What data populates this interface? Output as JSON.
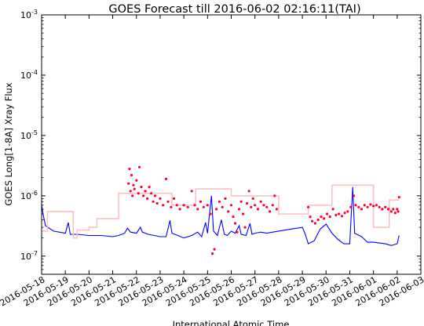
{
  "chart_data": {
    "type": "line",
    "title": "GOES Forecast till 2016-06-02 02:16:11(TAI)",
    "xlabel": "International Atomic Time",
    "ylabel": "GOES Long[1-8A] Xray Flux",
    "yscale": "log",
    "ylim": [
      5e-08,
      0.001
    ],
    "xlim": [
      "2016-05-18",
      "2016-06-03"
    ],
    "x_ticks": [
      "2016-05-18",
      "2016-05-19",
      "2016-05-20",
      "2016-05-21",
      "2016-05-22",
      "2016-05-23",
      "2016-05-24",
      "2016-05-25",
      "2016-05-26",
      "2016-05-27",
      "2016-05-28",
      "2016-05-29",
      "2016-05-30",
      "2016-05-31",
      "2016-06-01",
      "2016-06-02",
      "2016-06-03"
    ],
    "y_ticks": [
      {
        "value": 1e-07,
        "base": "10",
        "exp": "-7"
      },
      {
        "value": 1e-06,
        "base": "10",
        "exp": "-6"
      },
      {
        "value": 1e-05,
        "base": "10",
        "exp": "-5"
      },
      {
        "value": 0.0001,
        "base": "10",
        "exp": "-4"
      },
      {
        "value": 0.001,
        "base": "10",
        "exp": "-3"
      }
    ],
    "grid": "none",
    "series": [
      {
        "color": "#0000ff",
        "style": "line",
        "points": [
          [
            "2016-05-18 00:00",
            7e-07
          ],
          [
            "2016-05-18 02:00",
            4.5e-07
          ],
          [
            "2016-05-18 04:00",
            3.2e-07
          ],
          [
            "2016-05-18 12:00",
            2.6e-07
          ],
          [
            "2016-05-19 00:00",
            2.4e-07
          ],
          [
            "2016-05-19 03:00",
            3.6e-07
          ],
          [
            "2016-05-19 05:00",
            2.3e-07
          ],
          [
            "2016-05-19 12:00",
            2.3e-07
          ],
          [
            "2016-05-20 00:00",
            2.2e-07
          ],
          [
            "2016-05-20 12:00",
            2.2e-07
          ],
          [
            "2016-05-21 00:00",
            2.1e-07
          ],
          [
            "2016-05-21 06:00",
            2.2e-07
          ],
          [
            "2016-05-21 12:00",
            2.4e-07
          ],
          [
            "2016-05-21 15:00",
            2.9e-07
          ],
          [
            "2016-05-21 18:00",
            2.5e-07
          ],
          [
            "2016-05-22 00:00",
            2.4e-07
          ],
          [
            "2016-05-22 04:00",
            3e-07
          ],
          [
            "2016-05-22 06:00",
            2.5e-07
          ],
          [
            "2016-05-22 12:00",
            2.3e-07
          ],
          [
            "2016-05-22 18:00",
            2.2e-07
          ],
          [
            "2016-05-23 00:00",
            2.1e-07
          ],
          [
            "2016-05-23 06:00",
            2.1e-07
          ],
          [
            "2016-05-23 10:00",
            3.9e-07
          ],
          [
            "2016-05-23 12:00",
            2.4e-07
          ],
          [
            "2016-05-23 18:00",
            2.2e-07
          ],
          [
            "2016-05-24 00:00",
            2e-07
          ],
          [
            "2016-05-24 08:00",
            2.2e-07
          ],
          [
            "2016-05-24 14:00",
            2.5e-07
          ],
          [
            "2016-05-24 18:00",
            2.1e-07
          ],
          [
            "2016-05-24 22:00",
            3.6e-07
          ],
          [
            "2016-05-25 00:00",
            2.4e-07
          ],
          [
            "2016-05-25 04:00",
            1e-06
          ],
          [
            "2016-05-25 06:00",
            2.6e-07
          ],
          [
            "2016-05-25 10:00",
            2.2e-07
          ],
          [
            "2016-05-25 14:00",
            4e-07
          ],
          [
            "2016-05-25 17:00",
            2.3e-07
          ],
          [
            "2016-05-25 20:00",
            2.2e-07
          ],
          [
            "2016-05-26 00:00",
            2.6e-07
          ],
          [
            "2016-05-26 04:00",
            2.4e-07
          ],
          [
            "2016-05-26 08:00",
            3.2e-07
          ],
          [
            "2016-05-26 10:00",
            2.3e-07
          ],
          [
            "2016-05-26 15:00",
            2.2e-07
          ],
          [
            "2016-05-26 19:00",
            3.5e-07
          ],
          [
            "2016-05-26 21:00",
            2.3e-07
          ],
          [
            "2016-05-27 00:00",
            2.4e-07
          ],
          [
            "2016-05-27 06:00",
            2.5e-07
          ],
          [
            "2016-05-27 12:00",
            2.4e-07
          ],
          [
            "2016-05-27 18:00",
            2.5e-07
          ],
          [
            "2016-05-28 00:00",
            2.6e-07
          ],
          [
            "2016-05-28 12:00",
            2.8e-07
          ],
          [
            "2016-05-29 00:00",
            3e-07
          ],
          [
            "2016-05-29 03:00",
            2.3e-07
          ],
          [
            "2016-05-29 06:00",
            1.6e-07
          ],
          [
            "2016-05-29 12:00",
            1.8e-07
          ],
          [
            "2016-05-29 18:00",
            2.8e-07
          ],
          [
            "2016-05-30 00:00",
            3.4e-07
          ],
          [
            "2016-05-30 06:00",
            2.4e-07
          ],
          [
            "2016-05-30 12:00",
            1.9e-07
          ],
          [
            "2016-05-30 18:00",
            1.6e-07
          ],
          [
            "2016-05-31 00:00",
            1.6e-07
          ],
          [
            "2016-05-31 03:00",
            1.4e-06
          ],
          [
            "2016-05-31 05:00",
            2.4e-07
          ],
          [
            "2016-05-31 12:00",
            2.1e-07
          ],
          [
            "2016-05-31 18:00",
            1.7e-07
          ],
          [
            "2016-06-01 00:00",
            1.7e-07
          ],
          [
            "2016-06-01 12:00",
            1.6e-07
          ],
          [
            "2016-06-01 18:00",
            1.5e-07
          ],
          [
            "2016-06-02 00:00",
            1.6e-07
          ],
          [
            "2016-06-02 02:00",
            2.2e-07
          ]
        ]
      },
      {
        "color": "#ffc0c0",
        "style": "step",
        "points": [
          [
            "2016-05-18 00:00",
            2.6e-07
          ],
          [
            "2016-05-18 06:00",
            5.5e-07
          ],
          [
            "2016-05-19 00:00",
            5.5e-07
          ],
          [
            "2016-05-19 08:00",
            2e-07
          ],
          [
            "2016-05-19 12:00",
            2.7e-07
          ],
          [
            "2016-05-20 00:00",
            3e-07
          ],
          [
            "2016-05-20 08:00",
            4.2e-07
          ],
          [
            "2016-05-21 00:00",
            4.2e-07
          ],
          [
            "2016-05-21 06:00",
            1.1e-06
          ],
          [
            "2016-05-22 00:00",
            1.1e-06
          ],
          [
            "2016-05-22 18:00",
            1.1e-06
          ],
          [
            "2016-05-23 00:00",
            1.1e-06
          ],
          [
            "2016-05-23 12:00",
            7e-07
          ],
          [
            "2016-05-24 00:00",
            7e-07
          ],
          [
            "2016-05-24 12:00",
            1.3e-06
          ],
          [
            "2016-05-25 00:00",
            1.3e-06
          ],
          [
            "2016-05-25 12:00",
            1.3e-06
          ],
          [
            "2016-05-26 00:00",
            1e-06
          ],
          [
            "2016-05-27 00:00",
            1e-06
          ],
          [
            "2016-05-27 12:00",
            1e-06
          ],
          [
            "2016-05-28 00:00",
            5e-07
          ],
          [
            "2016-05-29 00:00",
            5e-07
          ],
          [
            "2016-05-29 06:00",
            7e-07
          ],
          [
            "2016-05-30 00:00",
            7e-07
          ],
          [
            "2016-05-30 06:00",
            1.5e-06
          ],
          [
            "2016-05-31 00:00",
            1.5e-06
          ],
          [
            "2016-05-31 12:00",
            1.5e-06
          ],
          [
            "2016-06-01 00:00",
            3e-07
          ],
          [
            "2016-06-01 12:00",
            3e-07
          ],
          [
            "2016-06-01 16:00",
            8.5e-07
          ],
          [
            "2016-06-02 00:00",
            8.5e-07
          ],
          [
            "2016-06-02 02:00",
            8.5e-07
          ]
        ]
      },
      {
        "color": "#ff0033",
        "style": "scatter",
        "points": [
          [
            "2016-05-21 16:00",
            1.6e-06
          ],
          [
            "2016-05-21 17:00",
            2.8e-06
          ],
          [
            "2016-05-21 18:00",
            1.2e-06
          ],
          [
            "2016-05-21 19:00",
            2.2e-06
          ],
          [
            "2016-05-21 20:00",
            1e-06
          ],
          [
            "2016-05-21 21:00",
            1.5e-06
          ],
          [
            "2016-05-21 22:00",
            1.3e-06
          ],
          [
            "2016-05-22 00:00",
            1.8e-06
          ],
          [
            "2016-05-22 02:00",
            1.1e-06
          ],
          [
            "2016-05-22 03:00",
            3e-06
          ],
          [
            "2016-05-22 05:00",
            1.4e-06
          ],
          [
            "2016-05-22 07:00",
            1e-06
          ],
          [
            "2016-05-22 09:00",
            1.2e-06
          ],
          [
            "2016-05-22 11:00",
            9e-07
          ],
          [
            "2016-05-22 13:00",
            1.4e-06
          ],
          [
            "2016-05-22 15:00",
            1.1e-06
          ],
          [
            "2016-05-22 17:00",
            8e-07
          ],
          [
            "2016-05-22 19:00",
            1e-06
          ],
          [
            "2016-05-22 21:00",
            7.5e-07
          ],
          [
            "2016-05-23 00:00",
            9e-07
          ],
          [
            "2016-05-23 03:00",
            7e-07
          ],
          [
            "2016-05-23 06:00",
            1.9e-06
          ],
          [
            "2016-05-23 08:00",
            8e-07
          ],
          [
            "2016-05-23 11:00",
            6.5e-07
          ],
          [
            "2016-05-23 14:00",
            9e-07
          ],
          [
            "2016-05-23 17:00",
            7e-07
          ],
          [
            "2016-05-23 20:00",
            6e-07
          ],
          [
            "2016-05-24 00:00",
            7e-07
          ],
          [
            "2016-05-24 04:00",
            6.5e-07
          ],
          [
            "2016-05-24 08:00",
            1.2e-06
          ],
          [
            "2016-05-24 11:00",
            7e-07
          ],
          [
            "2016-05-24 14:00",
            6e-07
          ],
          [
            "2016-05-24 17:00",
            8e-07
          ],
          [
            "2016-05-24 20:00",
            6.5e-07
          ],
          [
            "2016-05-25 00:00",
            7e-07
          ],
          [
            "2016-05-25 03:00",
            5e-07
          ],
          [
            "2016-05-25 05:00",
            1.1e-07
          ],
          [
            "2016-05-25 07:00",
            1.3e-07
          ],
          [
            "2016-05-25 09:00",
            6e-07
          ],
          [
            "2016-05-25 12:00",
            8e-07
          ],
          [
            "2016-05-25 15:00",
            6.5e-07
          ],
          [
            "2016-05-25 18:00",
            9e-07
          ],
          [
            "2016-05-25 21:00",
            5.5e-07
          ],
          [
            "2016-05-26 00:00",
            7e-07
          ],
          [
            "2016-05-26 02:00",
            4.5e-07
          ],
          [
            "2016-05-26 04:00",
            3.5e-07
          ],
          [
            "2016-05-26 06:00",
            2.5e-07
          ],
          [
            "2016-05-26 08:00",
            6e-07
          ],
          [
            "2016-05-26 10:00",
            8e-07
          ],
          [
            "2016-05-26 12:00",
            5e-07
          ],
          [
            "2016-05-26 14:00",
            3e-07
          ],
          [
            "2016-05-26 16:00",
            7.5e-07
          ],
          [
            "2016-05-26 18:00",
            1.2e-06
          ],
          [
            "2016-05-26 20:00",
            6.5e-07
          ],
          [
            "2016-05-26 22:00",
            9e-07
          ],
          [
            "2016-05-27 00:00",
            7e-07
          ],
          [
            "2016-05-27 03:00",
            6e-07
          ],
          [
            "2016-05-27 06:00",
            8e-07
          ],
          [
            "2016-05-27 09:00",
            7e-07
          ],
          [
            "2016-05-27 12:00",
            6.5e-07
          ],
          [
            "2016-05-27 15:00",
            5.5e-07
          ],
          [
            "2016-05-27 18:00",
            7e-07
          ],
          [
            "2016-05-27 20:00",
            1e-06
          ],
          [
            "2016-05-27 22:00",
            6e-07
          ],
          [
            "2016-05-29 06:00",
            6.5e-07
          ],
          [
            "2016-05-29 08:00",
            4.5e-07
          ],
          [
            "2016-05-29 10:00",
            3.8e-07
          ],
          [
            "2016-05-29 13:00",
            3.5e-07
          ],
          [
            "2016-05-29 16:00",
            4e-07
          ],
          [
            "2016-05-29 19:00",
            4.5e-07
          ],
          [
            "2016-05-29 22:00",
            4.2e-07
          ],
          [
            "2016-05-30 01:00",
            5e-07
          ],
          [
            "2016-05-30 04:00",
            4.5e-07
          ],
          [
            "2016-05-30 07:00",
            6e-07
          ],
          [
            "2016-05-30 10:00",
            4.8e-07
          ],
          [
            "2016-05-30 13:00",
            5e-07
          ],
          [
            "2016-05-30 16:00",
            4.6e-07
          ],
          [
            "2016-05-30 19:00",
            5.2e-07
          ],
          [
            "2016-05-30 22:00",
            5.5e-07
          ],
          [
            "2016-05-31 01:00",
            6.5e-07
          ],
          [
            "2016-05-31 04:00",
            1e-06
          ],
          [
            "2016-05-31 06:00",
            7e-07
          ],
          [
            "2016-05-31 09:00",
            6.5e-07
          ],
          [
            "2016-05-31 12:00",
            6e-07
          ],
          [
            "2016-05-31 15:00",
            7e-07
          ],
          [
            "2016-05-31 18:00",
            6.5e-07
          ],
          [
            "2016-05-31 21:00",
            7.2e-07
          ],
          [
            "2016-06-01 00:00",
            6.8e-07
          ],
          [
            "2016-06-01 03:00",
            7e-07
          ],
          [
            "2016-06-01 06:00",
            6.5e-07
          ],
          [
            "2016-06-01 09:00",
            6e-07
          ],
          [
            "2016-06-01 12:00",
            6.5e-07
          ],
          [
            "2016-06-01 15:00",
            6e-07
          ],
          [
            "2016-06-01 18:00",
            5.5e-07
          ],
          [
            "2016-06-01 20:00",
            6e-07
          ],
          [
            "2016-06-01 22:00",
            5.2e-07
          ],
          [
            "2016-06-02 00:00",
            6e-07
          ],
          [
            "2016-06-02 01:00",
            5.5e-07
          ],
          [
            "2016-06-02 02:00",
            9.5e-07
          ]
        ]
      }
    ]
  }
}
